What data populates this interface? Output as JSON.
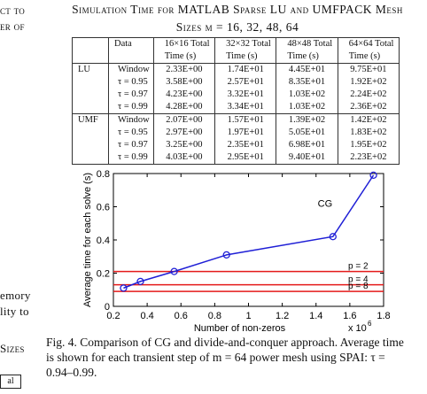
{
  "left_column": {
    "line1": "ct to",
    "line2": "er of",
    "line3": "emory",
    "line4": "lity to",
    "line5": "Sizes",
    "box": "al"
  },
  "table_title": {
    "line1": "Simulation Time for MATLAB Sparse LU and UMFPACK Mesh",
    "line2": "Sizes m = 16, 32, 48, 64"
  },
  "table": {
    "headers": [
      "",
      "Data",
      "16×16 Total",
      "32×32 Total",
      "48×48 Total",
      "64×64 Total"
    ],
    "subheaders": [
      "",
      "",
      "Time (s)",
      "Time (s)",
      "Time (s)",
      "Time (s)"
    ],
    "groups": [
      {
        "name": "LU",
        "rows": [
          {
            "label": "Window",
            "values": [
              "2.33E+00",
              "1.74E+01",
              "4.45E+01",
              "9.75E+01"
            ]
          },
          {
            "label": "τ = 0.95",
            "values": [
              "3.58E+00",
              "2.57E+01",
              "8.35E+01",
              "1.92E+02"
            ]
          },
          {
            "label": "τ = 0.97",
            "values": [
              "4.23E+00",
              "3.32E+01",
              "1.03E+02",
              "2.24E+02"
            ]
          },
          {
            "label": "τ = 0.99",
            "values": [
              "4.28E+00",
              "3.34E+01",
              "1.03E+02",
              "2.36E+02"
            ]
          }
        ]
      },
      {
        "name": "UMF",
        "rows": [
          {
            "label": "Window",
            "values": [
              "2.07E+00",
              "1.57E+01",
              "1.39E+02",
              "1.42E+02"
            ]
          },
          {
            "label": "τ = 0.95",
            "values": [
              "2.97E+00",
              "1.97E+01",
              "5.05E+01",
              "1.83E+02"
            ]
          },
          {
            "label": "τ = 0.97",
            "values": [
              "3.25E+00",
              "2.35E+01",
              "6.98E+01",
              "1.95E+02"
            ]
          },
          {
            "label": "τ = 0.99",
            "values": [
              "4.03E+00",
              "2.95E+01",
              "9.40E+01",
              "2.23E+02"
            ]
          }
        ]
      }
    ]
  },
  "chart_data": {
    "type": "line",
    "xlabel": "Number of non-zeros",
    "ylabel": "Average time for each solve (s)",
    "x_exponent_label": "x 10",
    "x_exponent_power": "6",
    "xlim": [
      0.2,
      1.8
    ],
    "ylim": [
      0,
      0.8
    ],
    "xticks": [
      "0.2",
      "0.4",
      "0.6",
      "0.8",
      "1",
      "1.2",
      "1.4",
      "1.6",
      "1.8"
    ],
    "yticks": [
      "0",
      "0.2",
      "0.4",
      "0.6",
      "0.8"
    ],
    "grid": false,
    "series": [
      {
        "name": "CG",
        "color": "#1f1fd6",
        "x": [
          0.26,
          0.36,
          0.56,
          0.87,
          1.5,
          1.74
        ],
        "y": [
          0.11,
          0.15,
          0.21,
          0.31,
          0.42,
          0.79
        ]
      }
    ],
    "hlines": [
      {
        "label": "p = 2",
        "y": 0.21,
        "color": "#e41a1a"
      },
      {
        "label": "p = 4",
        "y": 0.13,
        "color": "#e41a1a"
      },
      {
        "label": "p = 8",
        "y": 0.09,
        "color": "#e41a1a"
      }
    ]
  },
  "caption": {
    "line1": "Fig. 4.    Comparison of CG and divide-and-conquer approach. Average time",
    "line2": "is shown for each transient step of m = 64 power mesh using SPAI: τ =",
    "line3": "0.94–0.99."
  }
}
